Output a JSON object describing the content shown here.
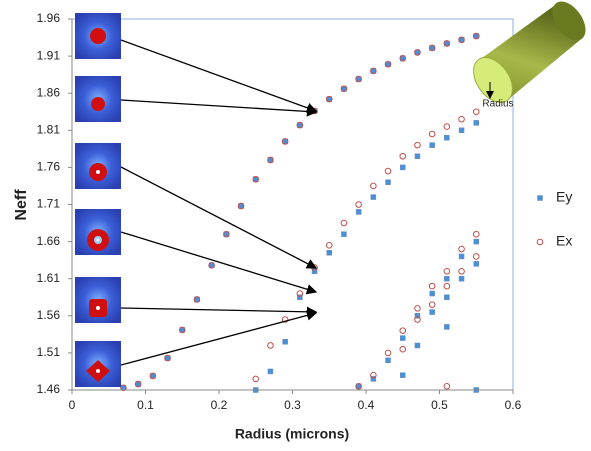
{
  "chart_data": {
    "type": "scatter",
    "x_label": "Radius (microns)",
    "y_label": "Neff",
    "annotation": "Radius",
    "xlim": [
      0,
      0.6
    ],
    "xticks": [
      0,
      0.1,
      0.2,
      0.3,
      0.4,
      0.5,
      0.6
    ],
    "ylim": [
      1.46,
      1.96
    ],
    "yticks": [
      1.46,
      1.51,
      1.56,
      1.61,
      1.66,
      1.71,
      1.76,
      1.81,
      1.86,
      1.91,
      1.96
    ],
    "legend": "right",
    "series": [
      {
        "name": "Ey",
        "color": "#4a90d9",
        "x": [
          0.07,
          0.09,
          0.11,
          0.13,
          0.15,
          0.17,
          0.19,
          0.21,
          0.23,
          0.25,
          0.27,
          0.29,
          0.31,
          0.33,
          0.35,
          0.37,
          0.39,
          0.41,
          0.43,
          0.45,
          0.47,
          0.49,
          0.51,
          0.53,
          0.55,
          0.25,
          0.27,
          0.29,
          0.31,
          0.33,
          0.35,
          0.37,
          0.39,
          0.41,
          0.43,
          0.45,
          0.47,
          0.49,
          0.51,
          0.53,
          0.55,
          0.39,
          0.41,
          0.43,
          0.45,
          0.47,
          0.49,
          0.51,
          0.53,
          0.55,
          0.45,
          0.47,
          0.49,
          0.51,
          0.53,
          0.55,
          0.51,
          0.55
        ],
        "values": [
          1.463,
          1.468,
          1.479,
          1.503,
          1.541,
          1.582,
          1.628,
          1.67,
          1.708,
          1.744,
          1.77,
          1.795,
          1.817,
          1.836,
          1.852,
          1.866,
          1.879,
          1.89,
          1.899,
          1.907,
          1.915,
          1.921,
          1.927,
          1.932,
          1.937,
          1.46,
          1.485,
          1.525,
          1.585,
          1.62,
          1.645,
          1.67,
          1.7,
          1.72,
          1.74,
          1.76,
          1.775,
          1.79,
          1.8,
          1.81,
          1.82,
          1.465,
          1.475,
          1.5,
          1.53,
          1.56,
          1.59,
          1.61,
          1.64,
          1.66,
          1.48,
          1.52,
          1.565,
          1.585,
          1.61,
          1.63,
          1.545,
          1.46
        ]
      },
      {
        "name": "Ex",
        "color": "#c0504d",
        "x": [
          0.07,
          0.09,
          0.11,
          0.13,
          0.15,
          0.17,
          0.19,
          0.21,
          0.23,
          0.25,
          0.27,
          0.29,
          0.31,
          0.33,
          0.35,
          0.37,
          0.39,
          0.41,
          0.43,
          0.45,
          0.47,
          0.49,
          0.51,
          0.53,
          0.55,
          0.25,
          0.27,
          0.29,
          0.31,
          0.33,
          0.35,
          0.37,
          0.39,
          0.41,
          0.43,
          0.45,
          0.47,
          0.49,
          0.51,
          0.53,
          0.55,
          0.39,
          0.41,
          0.43,
          0.45,
          0.47,
          0.49,
          0.51,
          0.53,
          0.55,
          0.45,
          0.47,
          0.49,
          0.51,
          0.53,
          0.55,
          0.51
        ],
        "values": [
          1.463,
          1.468,
          1.479,
          1.503,
          1.541,
          1.582,
          1.628,
          1.67,
          1.708,
          1.744,
          1.77,
          1.795,
          1.817,
          1.836,
          1.852,
          1.866,
          1.879,
          1.89,
          1.899,
          1.907,
          1.915,
          1.921,
          1.927,
          1.932,
          1.937,
          1.475,
          1.52,
          1.555,
          1.59,
          1.625,
          1.655,
          1.685,
          1.71,
          1.735,
          1.755,
          1.775,
          1.79,
          1.805,
          1.815,
          1.825,
          1.835,
          1.465,
          1.48,
          1.51,
          1.54,
          1.57,
          1.6,
          1.62,
          1.65,
          1.67,
          1.515,
          1.555,
          1.575,
          1.6,
          1.62,
          1.64,
          1.465
        ]
      }
    ]
  }
}
